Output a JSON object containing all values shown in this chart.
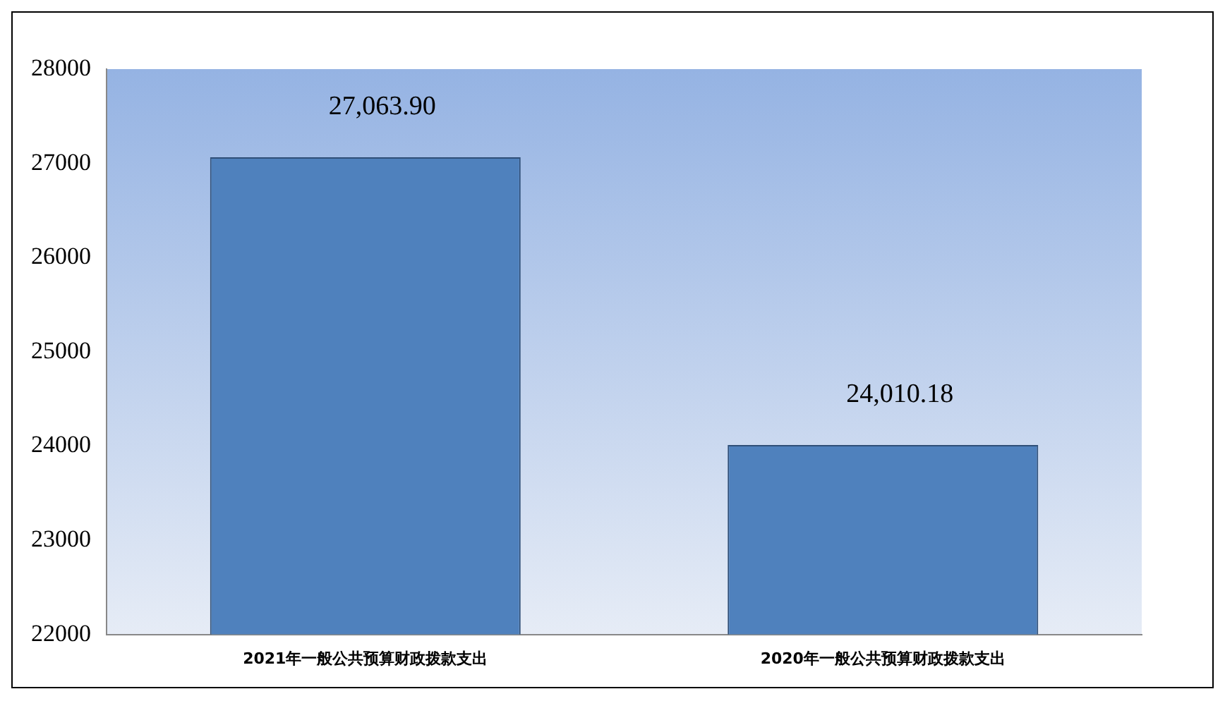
{
  "chart_data": {
    "type": "bar",
    "categories": [
      "2021年一般公共预算财政拨款支出",
      "2020年一般公共预算财政拨款支出"
    ],
    "values": [
      27063.9,
      24010.18
    ],
    "value_labels": [
      "27,063.90",
      "24,010.18"
    ],
    "color": "#4f81bd",
    "ylim": [
      22000,
      28000
    ],
    "yticks": [
      22000,
      23000,
      24000,
      25000,
      26000,
      27000,
      28000
    ],
    "grid": false,
    "legend": false
  }
}
